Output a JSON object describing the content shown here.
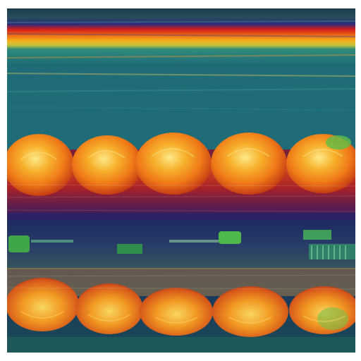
{
  "artwork": {
    "description_icon": "painting-icon",
    "colors": {
      "sky_top": "#1f2d5c",
      "sky_purple": "#3a2a7a",
      "band_red": "#d9281a",
      "band_orange": "#f07a12",
      "band_yellow": "#f2c21a",
      "band_teal": "#1f7f7a",
      "water_dark": "#12204a",
      "orb_core": "#fbe27a",
      "orb_mid": "#f5961f",
      "orb_edge": "#d24a14",
      "reflection_red": "#b8281c",
      "accent_green": "#3fa64a"
    }
  }
}
